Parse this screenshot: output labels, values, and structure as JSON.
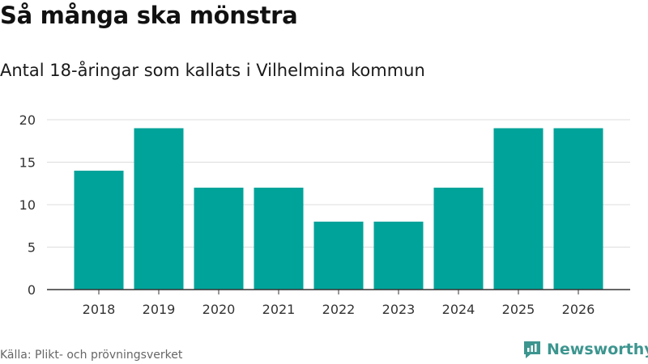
{
  "header": {
    "title": "Så många ska mönstra",
    "subtitle": "Antal 18-åringar som kallats i Vilhelmina kommun"
  },
  "footer": {
    "source": "Källa: Plikt- och prövningsverket",
    "brand": "Newsworthy"
  },
  "colors": {
    "bar": "#00a39a",
    "grid": "#dddddd",
    "axis": "#333333",
    "brand": "#3d958f"
  },
  "chart_data": {
    "type": "bar",
    "categories": [
      "2018",
      "2019",
      "2020",
      "2021",
      "2022",
      "2023",
      "2024",
      "2025",
      "2026"
    ],
    "values": [
      14,
      19,
      12,
      12,
      8,
      8,
      12,
      19,
      19
    ],
    "title": "Så många ska mönstra",
    "subtitle": "Antal 18-åringar som kallats i Vilhelmina kommun",
    "xlabel": "",
    "ylabel": "",
    "ylim": [
      0,
      20
    ],
    "yticks": [
      0,
      5,
      10,
      15,
      20
    ],
    "grid": true
  }
}
